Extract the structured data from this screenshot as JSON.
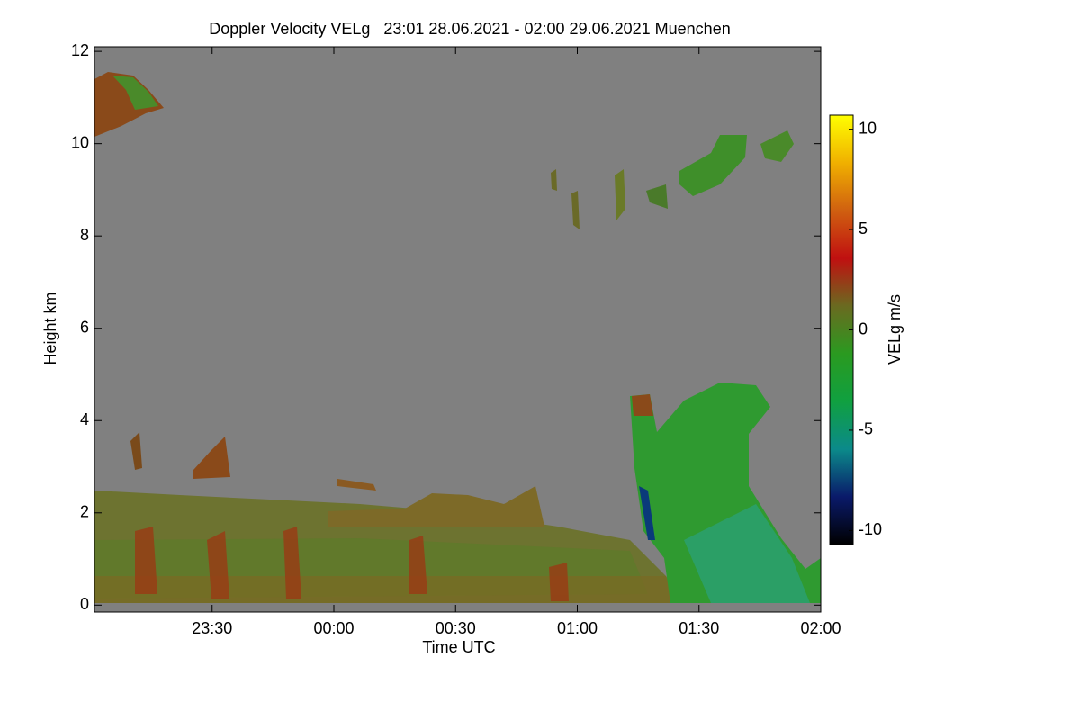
{
  "chart_data": {
    "type": "heatmap",
    "title": "Doppler Velocity VELg   23:01 28.06.2021 - 02:00 29.06.2021 Muenchen",
    "x_label": "Time UTC",
    "y_label": "Height km",
    "colorbar_label": "VELg m/s",
    "xlim": [
      "23:01",
      "02:00"
    ],
    "xticks": [
      "23:30",
      "00:00",
      "00:30",
      "01:00",
      "01:30",
      "02:00"
    ],
    "ylim": [
      -0.15,
      12.1
    ],
    "yticks": [
      0,
      2,
      4,
      6,
      8,
      10,
      12
    ],
    "clim": [
      -10.7,
      10.7
    ],
    "cticks": [
      -10,
      -5,
      0,
      5,
      10
    ],
    "colormap": [
      "#000000",
      "#0a1a6a",
      "#0b8a8a",
      "#10a040",
      "#2a9a20",
      "#6a6a20",
      "#c01010",
      "#d06010",
      "#f0b000",
      "#ffff00"
    ],
    "background_color": "#808080"
  }
}
